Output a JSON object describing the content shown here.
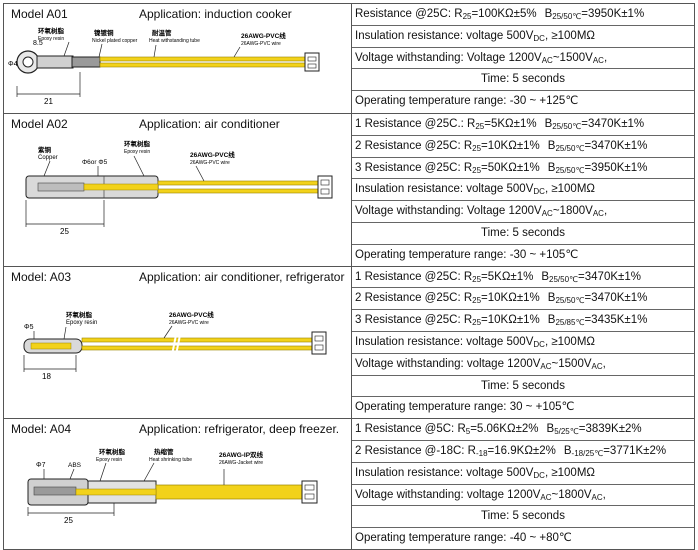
{
  "rows": [
    {
      "model": "Model    A01",
      "application": "Application: induction cooker",
      "lines": [
        {
          "text": "Resistance @25C: R",
          "sub1": "25",
          "mid": "=100KΩ±5%",
          "gap": true,
          "text2": "B",
          "sub2": "25/50℃",
          "end": "=3950K±1%"
        },
        {
          "text": "Insulation resistance:    voltage 500V",
          "sub1": "DC",
          "mid": ",  ≥100MΩ"
        },
        {
          "text": "Voltage withstanding:    Voltage 1200V",
          "sub1": "AC",
          "mid": "~1500V",
          "sub2": "AC",
          "end": ","
        },
        {
          "text": "Time: 5 seconds",
          "center": true
        },
        {
          "text": "Operating temperature range:  -30 ~ +125℃"
        }
      ],
      "drawing": {
        "labels": [
          "环氧树脂",
          "Epoxy resin",
          "镍镀铜",
          "Nickel plated copper",
          "耐温管",
          "Heat withstanding tube",
          "26AWG-PVC线",
          "26AWG-PVC wire",
          "Φ4",
          "8.5",
          "21"
        ]
      }
    },
    {
      "model": "Model    A02",
      "application": "Application: air conditioner",
      "lines": [
        {
          "text": "1 Resistance @25C.:  R",
          "sub1": "25",
          "mid": "=5KΩ±1%",
          "gap": true,
          "text2": "B",
          "sub2": "25/50℃",
          "end": "=3470K±1%"
        },
        {
          "text": "2 Resistance @25C:  R",
          "sub1": "25",
          "mid": "=10KΩ±1%",
          "gap": true,
          "text2": "B",
          "sub2": "25/50℃",
          "end": "=3470K±1%"
        },
        {
          "text": "3 Resistance @25C:  R",
          "sub1": "25",
          "mid": "=50KΩ±1%",
          "gap": true,
          "text2": "B",
          "sub2": "25/50℃",
          "end": "=3950K±1%"
        },
        {
          "text": "Insulation resistance:    voltage 500V",
          "sub1": "DC",
          "mid": ",  ≥100MΩ"
        },
        {
          "text": "Voltage withstanding:    Voltage 1200V",
          "sub1": "AC",
          "mid": "~1800V",
          "sub2": "AC",
          "end": ","
        },
        {
          "text": "Time: 5 seconds",
          "center": true
        },
        {
          "text": "Operating temperature range:  -30 ~ +105℃"
        }
      ],
      "drawing": {
        "labels": [
          "紫铜",
          "Copper",
          "Φ6or Φ5",
          "环氧树脂",
          "Epoxy resin",
          "26AWG-PVC线",
          "26AWG-PVC wire",
          "25"
        ]
      }
    },
    {
      "model": "Model: A03",
      "application": "Application: air conditioner, refrigerator",
      "lines": [
        {
          "text": "1 Resistance @25C:  R",
          "sub1": "25",
          "mid": "=5KΩ±1%",
          "gap": true,
          "text2": "B",
          "sub2": "25/50℃",
          "end": "=3470K±1%"
        },
        {
          "text": "2 Resistance @25C:  R",
          "sub1": "25",
          "mid": "=10KΩ±1%",
          "gap": true,
          "text2": "B",
          "sub2": "25/50℃",
          "end": "=3470K±1%"
        },
        {
          "text": "3 Resistance @25C:  R",
          "sub1": "25",
          "mid": "=10KΩ±1%",
          "gap": true,
          "text2": "B",
          "sub2": "25/85℃",
          "end": "=3435K±1%"
        },
        {
          "text": "Insulation resistance:  voltage 500V",
          "sub1": "DC",
          "mid": ",  ≥100MΩ"
        },
        {
          "text": "Voltage withstanding:    voltage 1200V",
          "sub1": "AC",
          "mid": "~1500V",
          "sub2": "AC",
          "end": ","
        },
        {
          "text": "Time: 5 seconds",
          "center": true
        },
        {
          "text": "Operating temperature range:  30 ~ +105℃"
        }
      ],
      "drawing": {
        "labels": [
          "Φ5",
          "环氧树脂",
          "Epoxy resin",
          "26AWG-PVC线",
          "26AWG-PVC wire",
          "18"
        ]
      }
    },
    {
      "model": "Model: A04",
      "application": "Application: refrigerator, deep freezer.",
      "lines": [
        {
          "text": "1 Resistance @5C:  R",
          "sub1": "5",
          "mid": "=5.06KΩ±2%",
          "gap": true,
          "text2": "B",
          "sub2": "5/25℃",
          "end": "=3839K±2%"
        },
        {
          "text": "2 Resistance @-18C: R",
          "sub1": "-18",
          "mid": "=16.9KΩ±2%",
          "gap": true,
          "text2": "B",
          "sub2": "-18/25℃",
          "end": "=3771K±2%"
        },
        {
          "text": "Insulation resistance:  voltage 500V",
          "sub1": "DC",
          "mid": ",  ≥100MΩ"
        },
        {
          "text": "Voltage withstanding:  voltage 1200V",
          "sub1": "AC",
          "mid": "~1800V",
          "sub2": "AC",
          "end": ","
        },
        {
          "text": "Time: 5 seconds",
          "center": true
        },
        {
          "text": "Operating temperature range:  -40 ~ +80℃"
        }
      ],
      "drawing": {
        "labels": [
          "Φ7",
          "ABS",
          "环氧树脂",
          "Epoxy resin",
          "热缩管",
          "Heat shrinking tube",
          "26AWG-IP双线",
          "26AWG-Jacket wire",
          "25"
        ]
      }
    }
  ],
  "colors": {
    "wire": "#f2d21a",
    "wire_edge": "#9a8400",
    "body": "#d7d7d7",
    "connector": "#ffffff"
  }
}
